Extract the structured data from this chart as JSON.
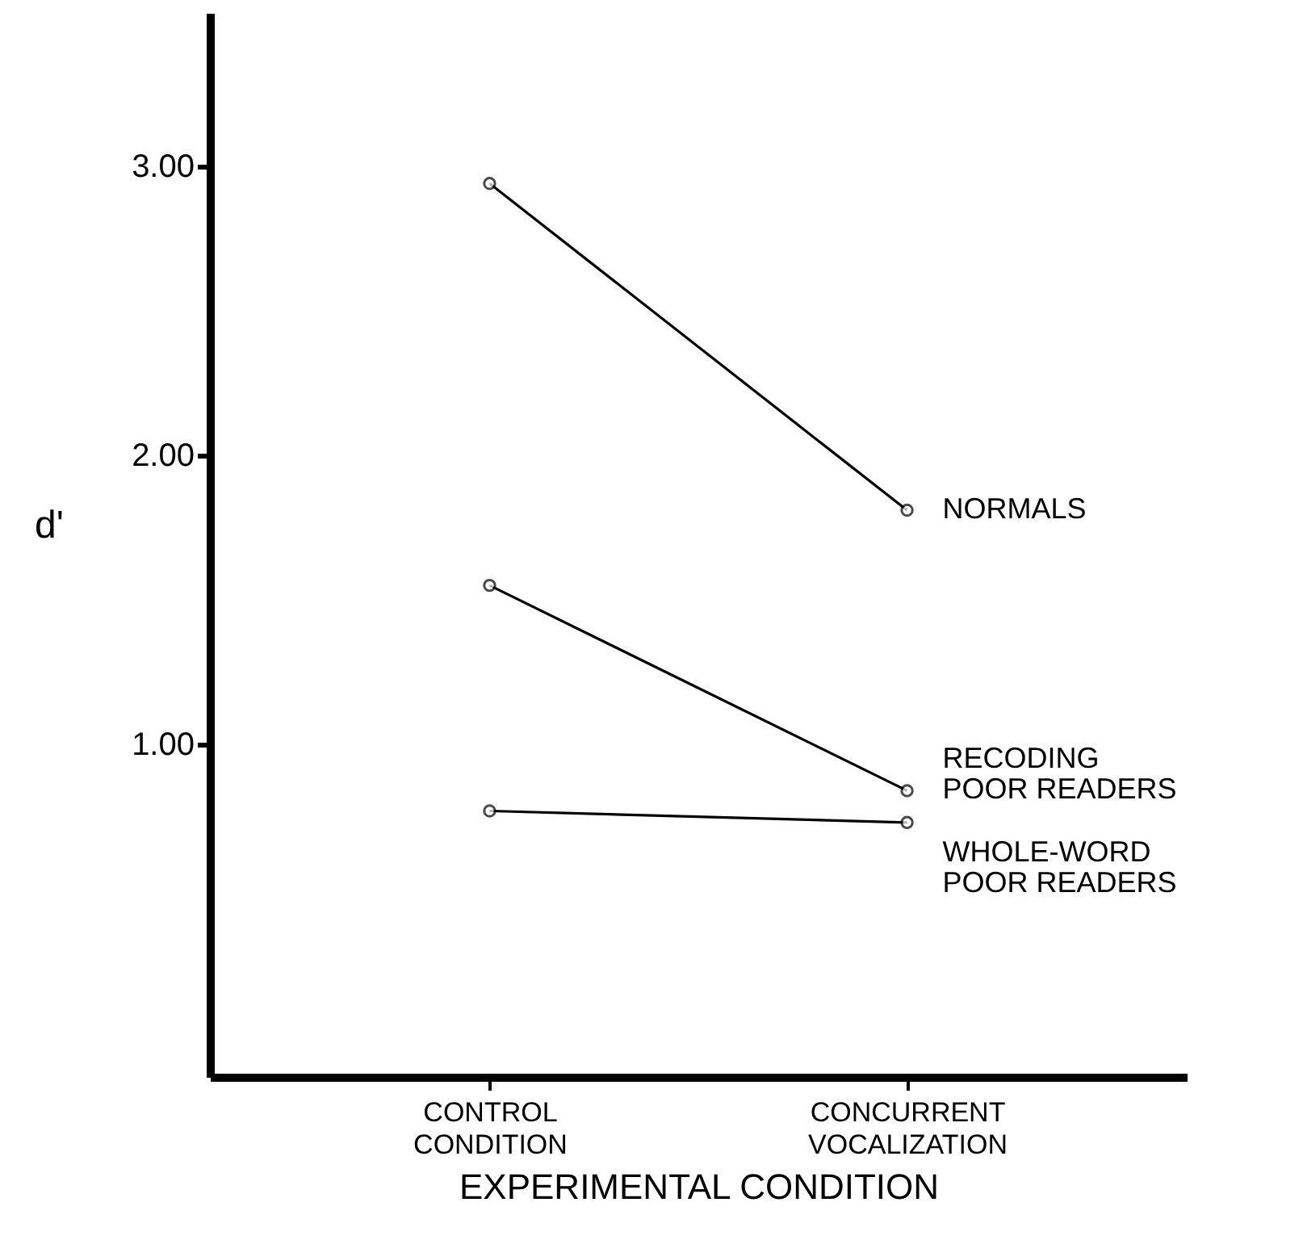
{
  "chart_data": {
    "type": "line",
    "xlabel": "EXPERIMENTAL CONDITION",
    "ylabel": "d'",
    "categories": [
      "CONTROL\nCONDITION",
      "CONCURRENT\nVOCALIZATION"
    ],
    "series": [
      {
        "name": "NORMALS",
        "color": "#000000",
        "values": [
          2.94,
          1.81
        ]
      },
      {
        "name": "RECODING\nPOOR READERS",
        "color": "#000000",
        "values": [
          1.55,
          0.84
        ]
      },
      {
        "name": "WHOLE-WORD\nPOOR READERS",
        "color": "#000000",
        "values": [
          0.77,
          0.73
        ]
      }
    ],
    "ylim": [
      -0.15,
      3.53
    ],
    "yticks": [
      {
        "value": 1,
        "label": "1.00"
      },
      {
        "value": 2,
        "label": "2.00"
      },
      {
        "value": 3,
        "label": "3.00"
      }
    ],
    "grid": false,
    "marker": "circle",
    "line_style": "solid"
  }
}
